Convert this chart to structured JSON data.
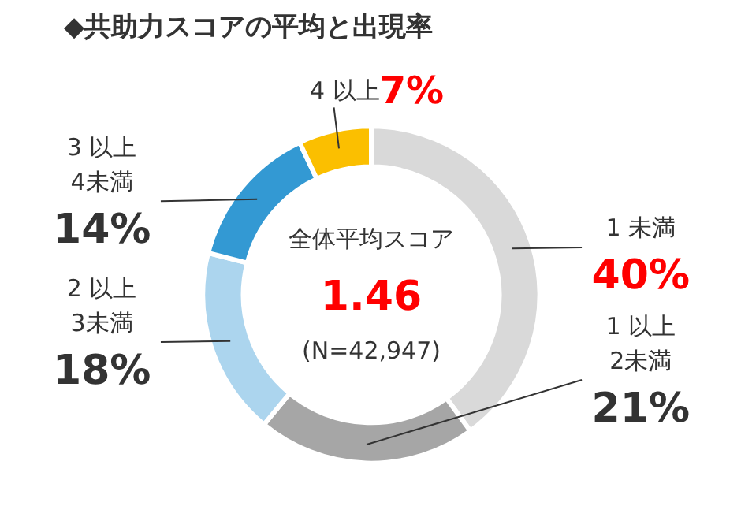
{
  "chart_data": {
    "type": "donut",
    "title": "◆共助力スコアの平均と出現率",
    "categories": [
      "1 未満",
      "1 以上\n2未満",
      "2 以上\n3未満",
      "3 以上\n4未満",
      "4 以上"
    ],
    "values": [
      40,
      21,
      18,
      14,
      7
    ],
    "value_labels": [
      "40%",
      "21%",
      "18%",
      "14%",
      "7%"
    ],
    "colors": [
      "#d9d9d9",
      "#a6a6a6",
      "#acd5ee",
      "#3399d3",
      "#fbbf00"
    ],
    "annotations": [
      "全体平均スコア",
      "1.46",
      "(N=42,947)"
    ]
  }
}
